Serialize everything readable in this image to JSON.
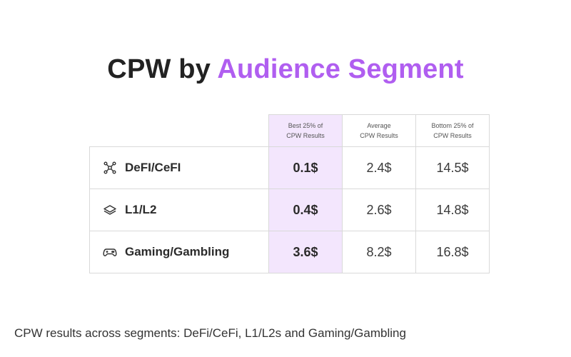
{
  "title": {
    "prefix": "CPW by ",
    "highlight": "Audience Segment"
  },
  "table": {
    "columns": [
      {
        "line1": "Best 25% of",
        "line2": "CPW Results"
      },
      {
        "line1": "Average",
        "line2": "CPW Results"
      },
      {
        "line1": "Bottom 25% of",
        "line2": "CPW Results"
      }
    ],
    "rows": [
      {
        "icon": "network-nodes-icon",
        "segment": "DeFI/CeFI",
        "best": "0.1$",
        "average": "2.4$",
        "bottom": "14.5$"
      },
      {
        "icon": "layers-icon",
        "segment": "L1/L2",
        "best": "0.4$",
        "average": "2.6$",
        "bottom": "14.8$"
      },
      {
        "icon": "gamepad-icon",
        "segment": "Gaming/Gambling",
        "best": "3.6$",
        "average": "8.2$",
        "bottom": "16.8$"
      }
    ]
  },
  "caption": "CPW results across segments: DeFi/CeFi, L1/L2s and Gaming/Gambling",
  "colors": {
    "accent": "#b05ef0",
    "highlight_column": "#f3e6fd"
  }
}
